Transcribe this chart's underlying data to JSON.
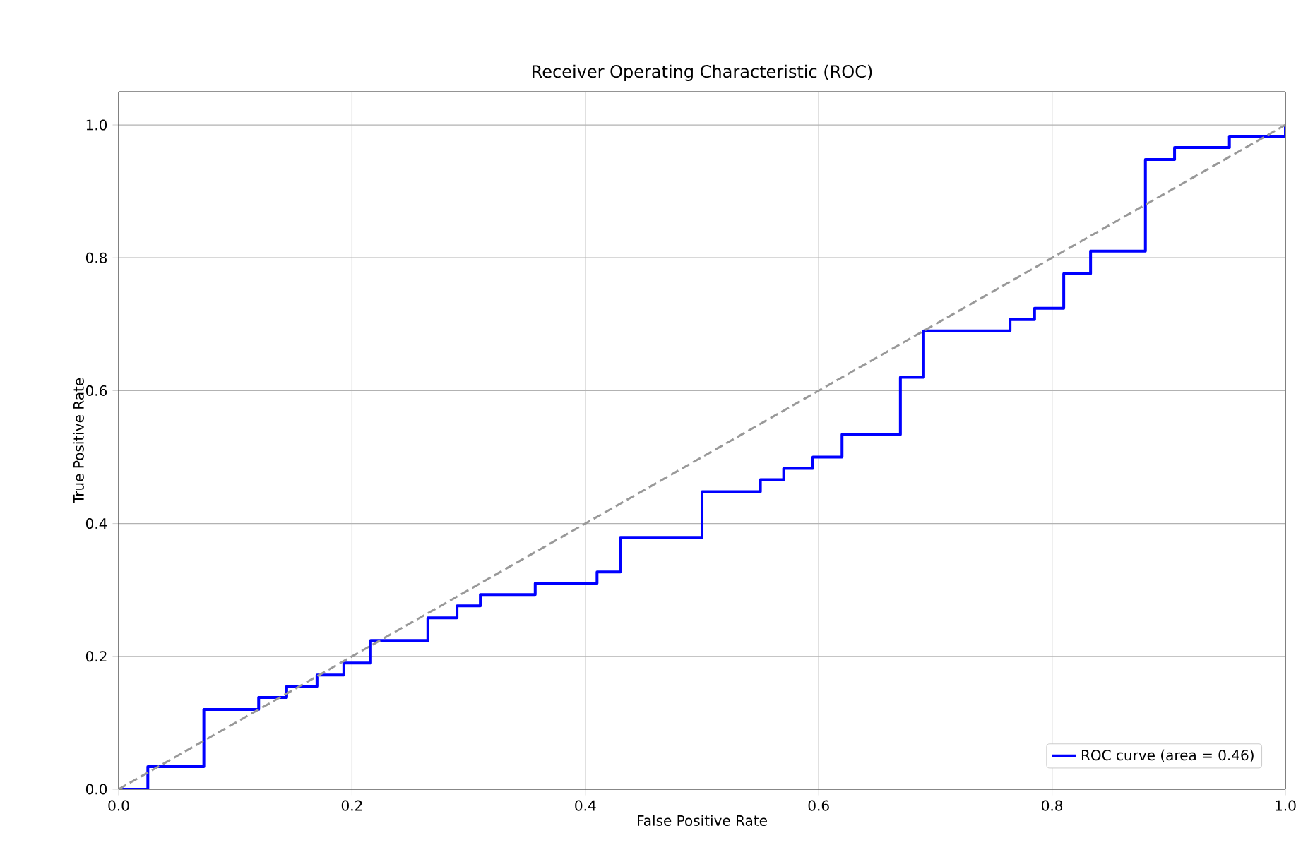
{
  "chart_data": {
    "type": "step",
    "title": "Receiver Operating Characteristic (ROC)",
    "xlabel": "False Positive Rate",
    "ylabel": "True Positive Rate",
    "xlim": [
      0,
      1
    ],
    "ylim": [
      0,
      1.05
    ],
    "xticks": [
      {
        "value": 0,
        "label": "0.0"
      },
      {
        "value": 0.2,
        "label": "0.2"
      },
      {
        "value": 0.4,
        "label": "0.4"
      },
      {
        "value": 0.6,
        "label": "0.6"
      },
      {
        "value": 0.8,
        "label": "0.8"
      },
      {
        "value": 1,
        "label": "1.0"
      }
    ],
    "yticks": [
      {
        "value": 0,
        "label": "0.0"
      },
      {
        "value": 0.2,
        "label": "0.2"
      },
      {
        "value": 0.4,
        "label": "0.4"
      },
      {
        "value": 0.6,
        "label": "0.6"
      },
      {
        "value": 0.8,
        "label": "0.8"
      },
      {
        "value": 1,
        "label": "1.0"
      }
    ],
    "grid": true,
    "legend": "bottom right",
    "series": [
      {
        "name": "ROC curve (area = 0.46)",
        "color": "#0000ff",
        "x": [
          0,
          0.025,
          0.073,
          0.12,
          0.144,
          0.17,
          0.193,
          0.216,
          0.265,
          0.29,
          0.31,
          0.357,
          0.41,
          0.43,
          0.5,
          0.55,
          0.57,
          0.595,
          0.62,
          0.67,
          0.69,
          0.764,
          0.785,
          0.81,
          0.833,
          0.88,
          0.905,
          0.952,
          1.0
        ],
        "values": [
          0,
          0.034,
          0.12,
          0.138,
          0.155,
          0.172,
          0.19,
          0.224,
          0.258,
          0.276,
          0.293,
          0.31,
          0.327,
          0.379,
          0.448,
          0.466,
          0.483,
          0.5,
          0.534,
          0.62,
          0.69,
          0.707,
          0.724,
          0.776,
          0.81,
          0.948,
          0.966,
          0.983,
          1.0
        ]
      },
      {
        "color": "#999999",
        "type": "line",
        "line_style": "dashed",
        "x": [
          0,
          1
        ],
        "values": [
          0,
          1
        ]
      }
    ]
  }
}
